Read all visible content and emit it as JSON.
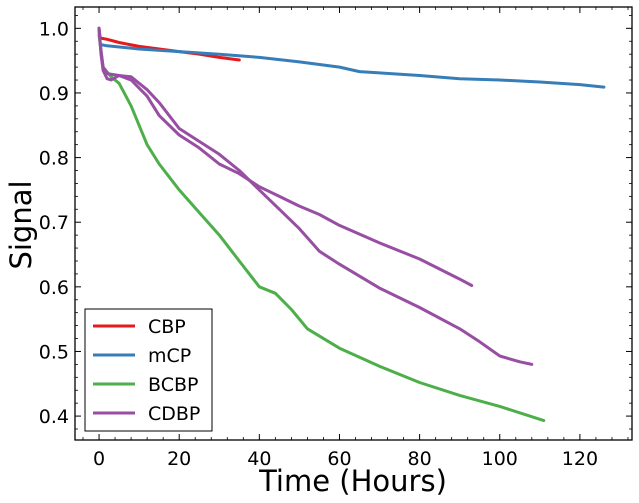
{
  "chart_data": {
    "type": "line",
    "xlabel": "Time (Hours)",
    "ylabel": "Signal",
    "xlim": [
      -6,
      133
    ],
    "ylim": [
      0.363,
      1.033
    ],
    "x_ticks": [
      0,
      20,
      40,
      60,
      80,
      100,
      120
    ],
    "y_ticks": [
      0.4,
      0.5,
      0.6,
      0.7,
      0.8,
      0.9,
      1.0
    ],
    "x_tick_labels": [
      "0",
      "20",
      "40",
      "60",
      "80",
      "100",
      "120"
    ],
    "y_tick_labels": [
      "0.4",
      "0.5",
      "0.6",
      "0.7",
      "0.8",
      "0.9",
      "1.0"
    ],
    "legend_position": "lower-left",
    "grid": false,
    "series": [
      {
        "name": "CBP",
        "color": "#e41a1c",
        "points": [
          [
            0,
            1.0
          ],
          [
            0.3,
            0.985
          ],
          [
            2,
            0.983
          ],
          [
            5,
            0.978
          ],
          [
            10,
            0.972
          ],
          [
            15,
            0.968
          ],
          [
            20,
            0.964
          ],
          [
            25,
            0.96
          ],
          [
            30,
            0.955
          ],
          [
            35,
            0.951
          ]
        ]
      },
      {
        "name": "mCP",
        "color": "#377eb8",
        "points": [
          [
            0,
            1.0
          ],
          [
            0.3,
            0.975
          ],
          [
            2,
            0.973
          ],
          [
            10,
            0.968
          ],
          [
            20,
            0.964
          ],
          [
            30,
            0.96
          ],
          [
            40,
            0.955
          ],
          [
            50,
            0.948
          ],
          [
            60,
            0.94
          ],
          [
            65,
            0.933
          ],
          [
            70,
            0.931
          ],
          [
            80,
            0.927
          ],
          [
            90,
            0.922
          ],
          [
            100,
            0.92
          ],
          [
            110,
            0.917
          ],
          [
            120,
            0.913
          ],
          [
            126,
            0.909
          ]
        ]
      },
      {
        "name": "BCBP",
        "color": "#4daf4a",
        "points": [
          [
            0,
            0.99
          ],
          [
            1,
            0.94
          ],
          [
            3,
            0.925
          ],
          [
            5,
            0.915
          ],
          [
            8,
            0.88
          ],
          [
            12,
            0.82
          ],
          [
            15,
            0.79
          ],
          [
            20,
            0.75
          ],
          [
            25,
            0.715
          ],
          [
            30,
            0.68
          ],
          [
            35,
            0.64
          ],
          [
            40,
            0.6
          ],
          [
            44,
            0.59
          ],
          [
            48,
            0.565
          ],
          [
            52,
            0.535
          ],
          [
            60,
            0.505
          ],
          [
            70,
            0.477
          ],
          [
            80,
            0.452
          ],
          [
            90,
            0.432
          ],
          [
            100,
            0.415
          ],
          [
            111,
            0.393
          ]
        ]
      },
      {
        "name": "CDBP",
        "color": "#984ea3",
        "points": [
          [
            0,
            1.0
          ],
          [
            0.5,
            0.96
          ],
          [
            1,
            0.935
          ],
          [
            2,
            0.922
          ],
          [
            3,
            0.92
          ],
          [
            5,
            0.927
          ],
          [
            8,
            0.925
          ],
          [
            12,
            0.905
          ],
          [
            15,
            0.885
          ],
          [
            20,
            0.845
          ],
          [
            25,
            0.825
          ],
          [
            30,
            0.805
          ],
          [
            35,
            0.78
          ],
          [
            40,
            0.75
          ],
          [
            45,
            0.72
          ],
          [
            50,
            0.69
          ],
          [
            55,
            0.655
          ],
          [
            60,
            0.635
          ],
          [
            70,
            0.598
          ],
          [
            80,
            0.568
          ],
          [
            90,
            0.535
          ],
          [
            95,
            0.515
          ],
          [
            100,
            0.493
          ],
          [
            105,
            0.484
          ],
          [
            108,
            0.48
          ]
        ]
      },
      {
        "name": "CDBP",
        "color": "#984ea3",
        "points": [
          [
            0,
            1.0
          ],
          [
            0.5,
            0.965
          ],
          [
            1,
            0.94
          ],
          [
            2,
            0.93
          ],
          [
            5,
            0.927
          ],
          [
            8,
            0.92
          ],
          [
            12,
            0.895
          ],
          [
            15,
            0.865
          ],
          [
            20,
            0.835
          ],
          [
            25,
            0.815
          ],
          [
            30,
            0.79
          ],
          [
            35,
            0.775
          ],
          [
            40,
            0.755
          ],
          [
            45,
            0.74
          ],
          [
            50,
            0.725
          ],
          [
            55,
            0.712
          ],
          [
            60,
            0.695
          ],
          [
            70,
            0.668
          ],
          [
            80,
            0.643
          ],
          [
            90,
            0.612
          ],
          [
            93,
            0.602
          ]
        ]
      }
    ],
    "legend": [
      "CBP",
      "mCP",
      "BCBP",
      "CDBP"
    ]
  }
}
